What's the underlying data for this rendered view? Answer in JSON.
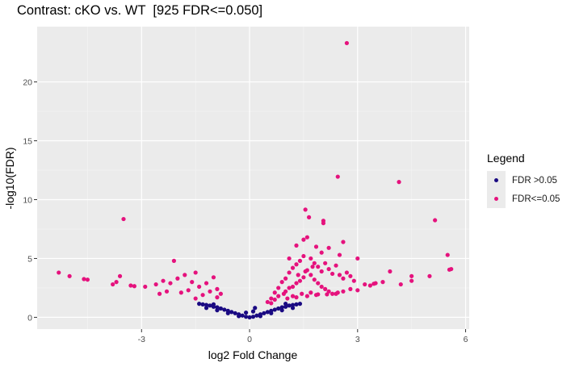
{
  "chart_data": {
    "type": "scatter",
    "title": "Contrast: cKO vs. WT  [925 FDR<=0.050]",
    "xlabel": "log2 Fold Change",
    "ylabel": "-log10(FDR)",
    "xlim": [
      -5.9,
      6.1
    ],
    "ylim": [
      -1.0,
      24.7
    ],
    "x_ticks": [
      -3,
      0,
      3,
      6
    ],
    "y_ticks": [
      0,
      5,
      10,
      15,
      20
    ],
    "grid": true,
    "legend": {
      "title": "Legend",
      "position": "right",
      "entries": [
        {
          "label": "FDR >0.05",
          "color": "#1a0a82"
        },
        {
          "label": "FDR<=0.05",
          "color": "#e5127d"
        }
      ]
    },
    "series": [
      {
        "name": "FDR >0.05",
        "color": "#1a0a82",
        "points": [
          [
            -1.4,
            1.15
          ],
          [
            -1.3,
            1.1
          ],
          [
            -1.2,
            1.05
          ],
          [
            -1.1,
            1.0
          ],
          [
            -1.0,
            0.9
          ],
          [
            -0.9,
            0.85
          ],
          [
            -0.8,
            0.75
          ],
          [
            -0.7,
            0.65
          ],
          [
            -0.6,
            0.55
          ],
          [
            -0.5,
            0.45
          ],
          [
            -0.4,
            0.35
          ],
          [
            -0.3,
            0.25
          ],
          [
            -0.2,
            0.15
          ],
          [
            -0.1,
            0.05
          ],
          [
            0.0,
            0.0
          ],
          [
            0.1,
            0.05
          ],
          [
            0.2,
            0.15
          ],
          [
            0.3,
            0.25
          ],
          [
            0.4,
            0.35
          ],
          [
            0.5,
            0.45
          ],
          [
            0.6,
            0.55
          ],
          [
            0.7,
            0.65
          ],
          [
            0.8,
            0.75
          ],
          [
            0.9,
            0.85
          ],
          [
            1.0,
            0.9
          ],
          [
            1.1,
            1.0
          ],
          [
            1.2,
            1.05
          ],
          [
            1.3,
            1.1
          ],
          [
            1.4,
            1.15
          ],
          [
            -1.2,
            0.8
          ],
          [
            -0.9,
            0.6
          ],
          [
            -0.6,
            0.35
          ],
          [
            -0.3,
            0.1
          ],
          [
            0.3,
            0.1
          ],
          [
            0.6,
            0.35
          ],
          [
            0.9,
            0.6
          ],
          [
            1.2,
            0.8
          ],
          [
            -1.0,
            1.1
          ],
          [
            1.0,
            1.15
          ],
          [
            0.1,
            0.5
          ],
          [
            0.15,
            0.8
          ],
          [
            -0.1,
            0.4
          ]
        ]
      },
      {
        "name": "FDR<=0.05",
        "color": "#e5127d",
        "points": [
          [
            2.7,
            23.3
          ],
          [
            4.15,
            11.5
          ],
          [
            2.45,
            11.95
          ],
          [
            5.15,
            8.25
          ],
          [
            -3.5,
            8.35
          ],
          [
            1.55,
            9.15
          ],
          [
            1.65,
            8.5
          ],
          [
            2.05,
            8.0
          ],
          [
            2.05,
            8.2
          ],
          [
            1.6,
            6.8
          ],
          [
            1.5,
            6.6
          ],
          [
            2.6,
            6.4
          ],
          [
            1.3,
            6.1
          ],
          [
            1.85,
            6.0
          ],
          [
            2.2,
            5.9
          ],
          [
            2.0,
            5.5
          ],
          [
            2.5,
            5.3
          ],
          [
            5.5,
            5.3
          ],
          [
            5.6,
            4.1
          ],
          [
            5.55,
            4.05
          ],
          [
            3.0,
            5.0
          ],
          [
            1.1,
            5.0
          ],
          [
            -2.1,
            4.8
          ],
          [
            -5.3,
            3.8
          ],
          [
            -5.0,
            3.5
          ],
          [
            -4.6,
            3.25
          ],
          [
            -4.5,
            3.2
          ],
          [
            -3.6,
            3.5
          ],
          [
            -3.7,
            3.0
          ],
          [
            -3.8,
            2.8
          ],
          [
            -3.3,
            2.7
          ],
          [
            -3.2,
            2.65
          ],
          [
            -2.9,
            2.6
          ],
          [
            -2.6,
            2.8
          ],
          [
            -2.4,
            3.1
          ],
          [
            -2.2,
            2.9
          ],
          [
            -2.0,
            3.3
          ],
          [
            -1.8,
            3.6
          ],
          [
            -1.6,
            3.0
          ],
          [
            -1.5,
            3.8
          ],
          [
            -1.4,
            2.6
          ],
          [
            -1.2,
            2.9
          ],
          [
            -1.0,
            3.4
          ],
          [
            -0.9,
            2.4
          ],
          [
            -1.1,
            2.2
          ],
          [
            -1.7,
            2.3
          ],
          [
            -1.9,
            2.1
          ],
          [
            -2.3,
            2.2
          ],
          [
            -0.8,
            2.0
          ],
          [
            -1.3,
            1.9
          ],
          [
            -2.5,
            2.0
          ],
          [
            -0.9,
            1.7
          ],
          [
            -1.5,
            1.6
          ],
          [
            3.2,
            2.8
          ],
          [
            3.5,
            2.9
          ],
          [
            3.7,
            3.0
          ],
          [
            3.9,
            3.9
          ],
          [
            4.5,
            3.5
          ],
          [
            4.5,
            3.1
          ],
          [
            5.0,
            3.5
          ],
          [
            4.2,
            2.8
          ],
          [
            3.45,
            2.85
          ],
          [
            2.9,
            3.1
          ],
          [
            3.35,
            2.7
          ],
          [
            0.5,
            1.3
          ],
          [
            0.6,
            1.6
          ],
          [
            0.7,
            2.1
          ],
          [
            0.8,
            2.5
          ],
          [
            0.9,
            3.0
          ],
          [
            1.0,
            3.3
          ],
          [
            1.1,
            3.8
          ],
          [
            1.2,
            4.2
          ],
          [
            1.3,
            4.5
          ],
          [
            1.4,
            4.8
          ],
          [
            1.5,
            5.2
          ],
          [
            1.7,
            5.0
          ],
          [
            1.8,
            4.6
          ],
          [
            1.9,
            4.3
          ],
          [
            2.0,
            3.9
          ],
          [
            2.1,
            4.6
          ],
          [
            2.2,
            4.1
          ],
          [
            2.3,
            3.7
          ],
          [
            2.4,
            4.4
          ],
          [
            2.5,
            3.6
          ],
          [
            2.6,
            3.3
          ],
          [
            2.7,
            3.8
          ],
          [
            2.8,
            3.5
          ],
          [
            1.6,
            4.0
          ],
          [
            1.7,
            3.6
          ],
          [
            1.8,
            3.2
          ],
          [
            1.9,
            2.9
          ],
          [
            2.0,
            2.6
          ],
          [
            2.1,
            2.4
          ],
          [
            2.2,
            2.2
          ],
          [
            2.3,
            2.0
          ],
          [
            1.2,
            2.6
          ],
          [
            1.3,
            2.9
          ],
          [
            1.4,
            3.1
          ],
          [
            1.5,
            3.4
          ],
          [
            1.0,
            2.2
          ],
          [
            1.1,
            2.5
          ],
          [
            0.8,
            1.8
          ],
          [
            0.95,
            2.0
          ],
          [
            1.2,
            1.8
          ],
          [
            1.45,
            2.0
          ],
          [
            1.7,
            2.1
          ],
          [
            1.9,
            1.95
          ],
          [
            2.4,
            2.0
          ],
          [
            2.6,
            2.2
          ],
          [
            2.8,
            2.4
          ],
          [
            3.0,
            2.3
          ],
          [
            1.35,
            3.6
          ],
          [
            1.55,
            3.9
          ],
          [
            1.75,
            4.3
          ],
          [
            0.7,
            1.5
          ],
          [
            0.6,
            1.2
          ],
          [
            1.05,
            1.6
          ],
          [
            1.3,
            1.7
          ],
          [
            1.6,
            1.8
          ],
          [
            1.85,
            1.9
          ],
          [
            2.15,
            1.95
          ],
          [
            2.45,
            2.1
          ]
        ]
      }
    ]
  }
}
